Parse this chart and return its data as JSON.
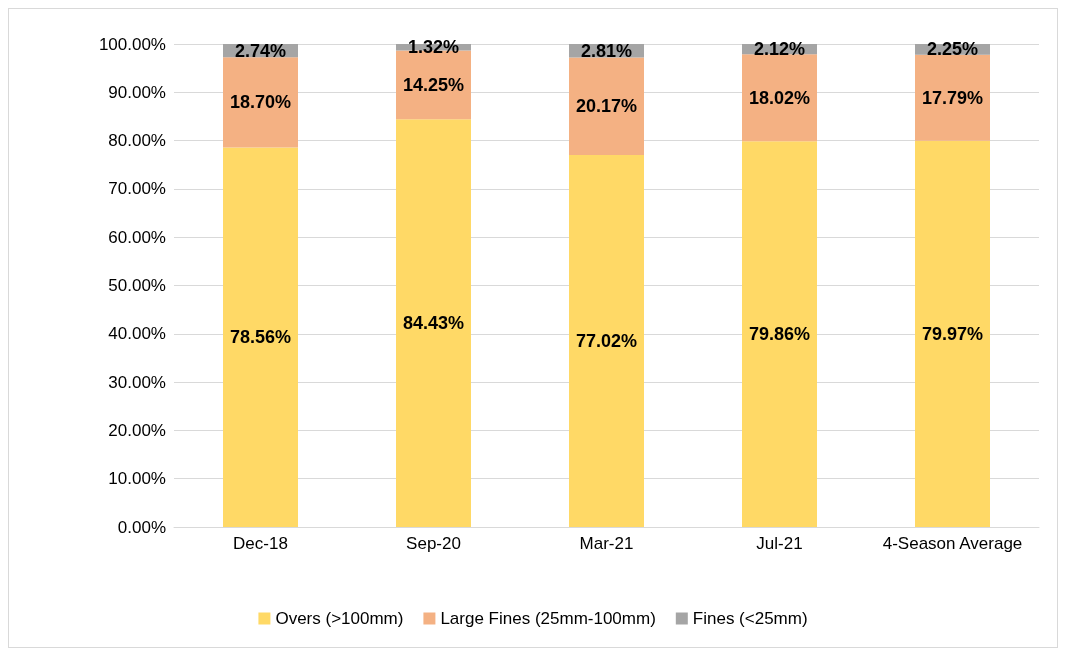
{
  "chart_data": {
    "type": "bar",
    "stacked": true,
    "categories": [
      "Dec-18",
      "Sep-20",
      "Mar-21",
      "Jul-21",
      "4-Season Average"
    ],
    "series": [
      {
        "name": "Overs (>100mm)",
        "color": "#ffd966",
        "values": [
          78.56,
          84.43,
          77.02,
          79.86,
          79.97
        ],
        "value_labels": [
          "78.56%",
          "84.43%",
          "77.02%",
          "79.86%",
          "79.97%"
        ]
      },
      {
        "name": "Large Fines (25mm-100mm)",
        "color": "#f4b183",
        "values": [
          18.7,
          14.25,
          20.17,
          18.02,
          17.79
        ],
        "value_labels": [
          "18.70%",
          "14.25%",
          "20.17%",
          "18.02%",
          "17.79%"
        ]
      },
      {
        "name": "Fines (<25mm)",
        "color": "#a5a5a5",
        "values": [
          2.74,
          1.32,
          2.81,
          2.12,
          2.25
        ],
        "value_labels": [
          "2.74%",
          "1.32%",
          "2.81%",
          "2.12%",
          "2.25%"
        ]
      }
    ],
    "ylim": [
      0,
      100
    ],
    "yticks": [
      {
        "value": 0,
        "label": "0.00%"
      },
      {
        "value": 10,
        "label": "10.00%"
      },
      {
        "value": 20,
        "label": "20.00%"
      },
      {
        "value": 30,
        "label": "30.00%"
      },
      {
        "value": 40,
        "label": "40.00%"
      },
      {
        "value": 50,
        "label": "50.00%"
      },
      {
        "value": 60,
        "label": "60.00%"
      },
      {
        "value": 70,
        "label": "70.00%"
      },
      {
        "value": 80,
        "label": "80.00%"
      },
      {
        "value": 90,
        "label": "90.00%"
      },
      {
        "value": 100,
        "label": "100.00%"
      }
    ],
    "grid": "y",
    "legend": "bottom"
  }
}
